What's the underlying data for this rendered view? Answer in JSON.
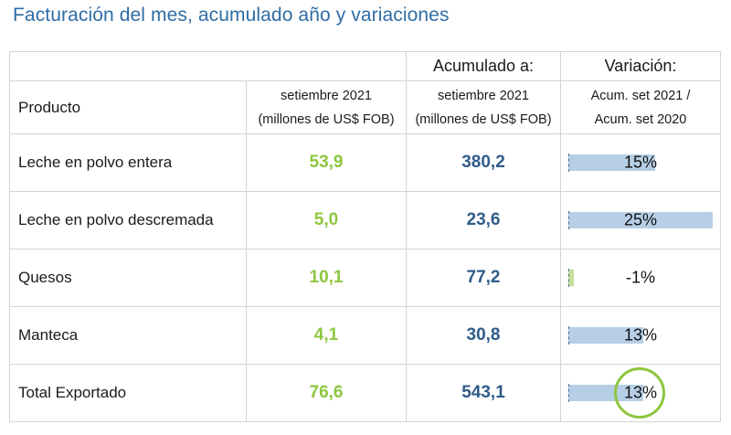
{
  "title": "Facturación del mes, acumulado año y variaciones",
  "headers": {
    "acumulado": "Acumulado a:",
    "variacion": "Variación:",
    "producto": "Producto",
    "month_period": "setiembre 2021",
    "month_unit": "(millones de US$ FOB)",
    "acum_period": "setiembre 2021",
    "acum_unit": "(millones de US$ FOB)",
    "var_line1": "Acum. set 2021 /",
    "var_line2": "Acum. set 2020"
  },
  "rows": [
    {
      "producto": "Leche en polvo entera",
      "mes": "53,9",
      "acumulado": "380,2",
      "variacion": "15%",
      "variacion_pct": 15
    },
    {
      "producto": "Leche en polvo descremada",
      "mes": "5,0",
      "acumulado": "23,6",
      "variacion": "25%",
      "variacion_pct": 25
    },
    {
      "producto": "Quesos",
      "mes": "10,1",
      "acumulado": "77,2",
      "variacion": "-1%",
      "variacion_pct": -1
    },
    {
      "producto": "Manteca",
      "mes": "4,1",
      "acumulado": "30,8",
      "variacion": "13%",
      "variacion_pct": 13
    },
    {
      "producto": "Total Exportado",
      "mes": "76,6",
      "acumulado": "543,1",
      "variacion": "13%",
      "variacion_pct": 13
    }
  ],
  "highlight": {
    "row_index": 4,
    "color": "#8dc63f"
  },
  "colors": {
    "title": "#2f6da5",
    "month_values": "#8dc63f",
    "acum_values": "#2f5c8a",
    "bar_positive": "#b7cfe6",
    "bar_negative": "#c5de9a"
  }
}
